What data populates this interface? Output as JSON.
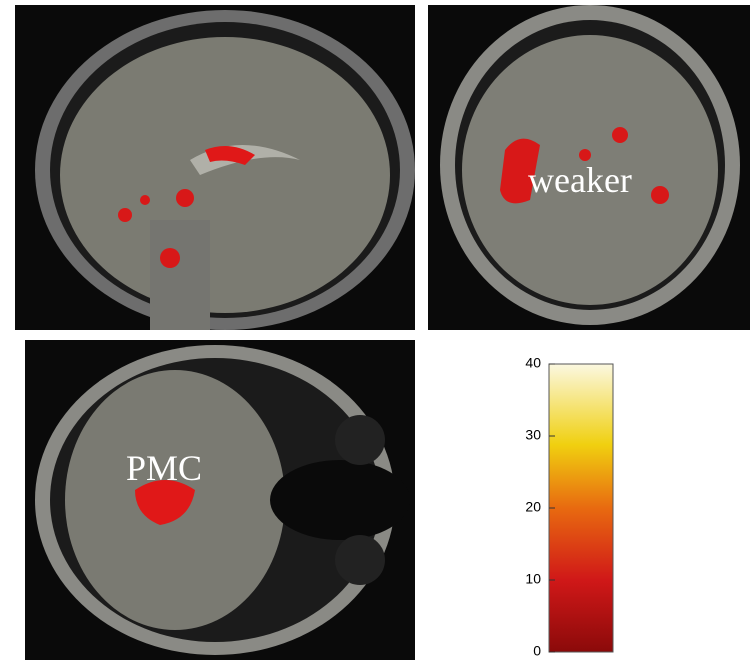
{
  "panels": {
    "coronal": {
      "label": "weaker"
    },
    "axial": {
      "label": "PMC"
    }
  },
  "colorbar": {
    "lim": [
      0,
      40
    ],
    "ticks": [
      0,
      10,
      20,
      30,
      40
    ]
  }
}
